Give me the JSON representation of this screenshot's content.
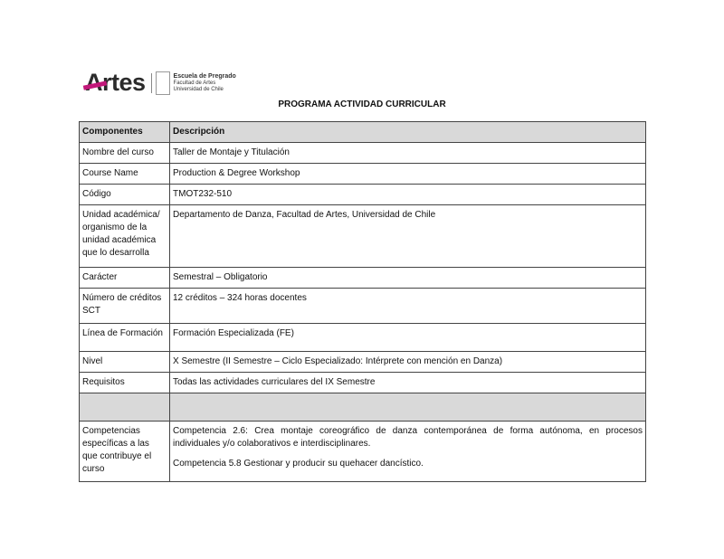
{
  "header": {
    "logo_text": "Artes",
    "school": "Escuela de Pregrado",
    "faculty": "Facultad de Artes",
    "university": "Universidad de Chile"
  },
  "title": "PROGRAMA ACTIVIDAD CURRICULAR",
  "table": {
    "headers": [
      "Componentes",
      "Descripción"
    ],
    "rows": [
      {
        "label": "Nombre del curso",
        "value": "Taller de Montaje y Titulación"
      },
      {
        "label": "Course Name",
        "value": "Production & Degree Workshop"
      },
      {
        "label": "Código",
        "value": "TMOT232-510"
      },
      {
        "label": "Unidad académica/ organismo de la unidad académica que lo desarrolla",
        "value": "Departamento de Danza, Facultad de Artes, Universidad de Chile"
      },
      {
        "label": "Carácter",
        "value": "Semestral – Obligatorio"
      },
      {
        "label": "Número de créditos SCT",
        "value": "12 créditos – 324 horas docentes"
      },
      {
        "label": "Línea de Formación",
        "value": "Formación Especializada (FE)"
      },
      {
        "label": "Nivel",
        "value": "X Semestre (II Semestre – Ciclo Especializado: Intérprete con mención en Danza)"
      },
      {
        "label": "Requisitos",
        "value": "Todas las actividades curriculares del IX Semestre"
      }
    ],
    "competencias": {
      "label": "Competencias específicas a las que contribuye el curso",
      "items": [
        "Competencia 2.6: Crea montaje coreográfico de danza contemporánea de forma autónoma, en procesos individuales y/o colaborativos e interdisciplinares.",
        "Competencia 5.8 Gestionar y producir su quehacer dancístico."
      ]
    }
  }
}
